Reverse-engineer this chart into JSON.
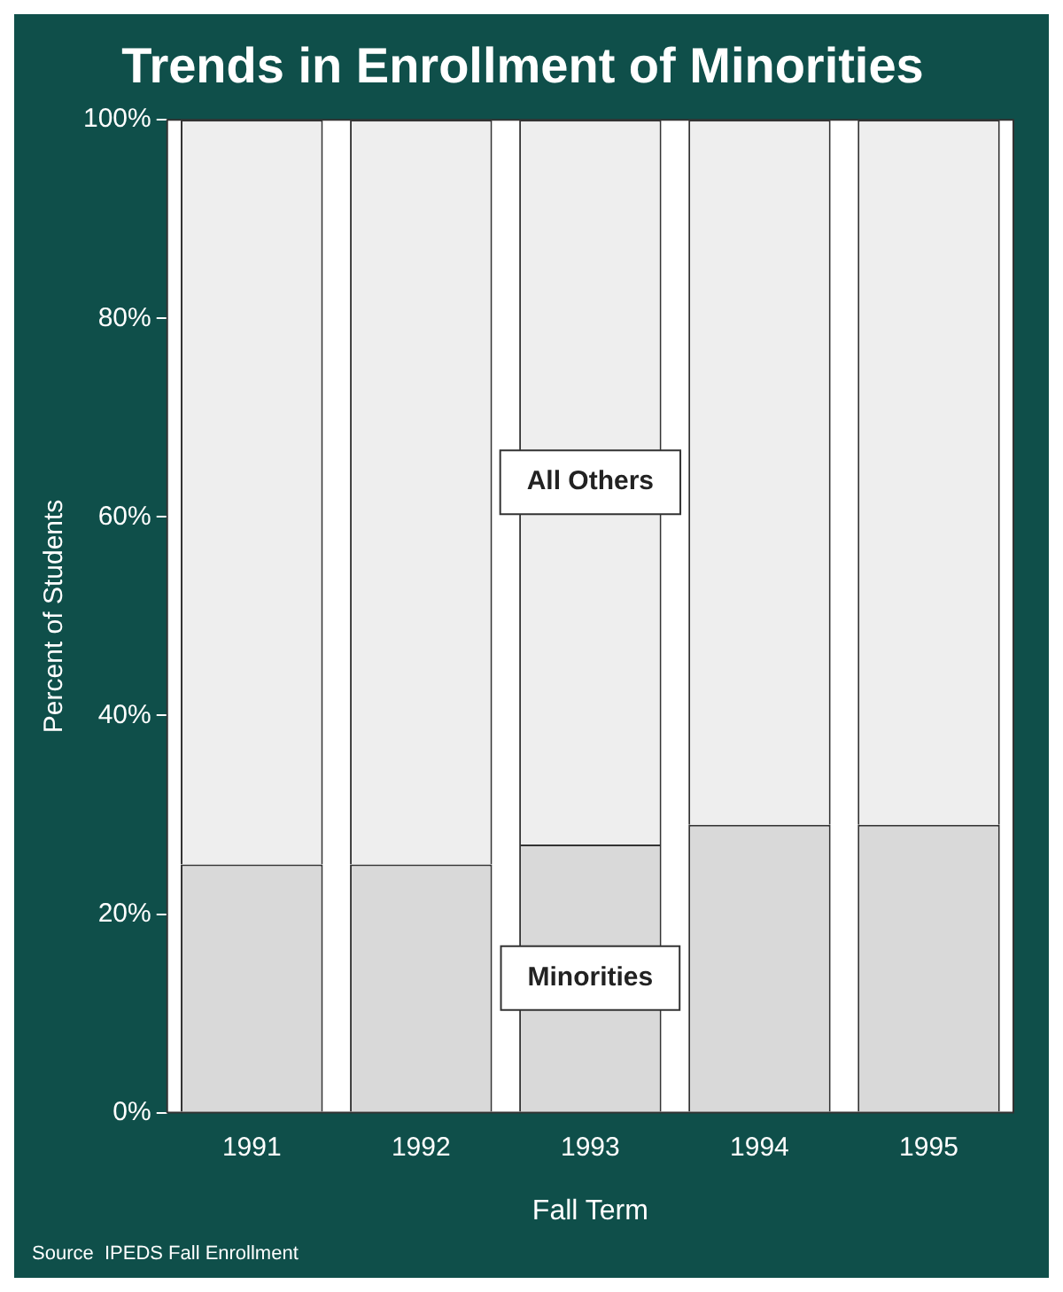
{
  "chart_data": {
    "type": "bar",
    "title": "Trends in Enrollment of Minorities",
    "xlabel": "Fall Term",
    "ylabel": "Percent of Students",
    "categories": [
      "1991",
      "1992",
      "1993",
      "1994",
      "1995"
    ],
    "series": [
      {
        "name": "Minorities",
        "color": "#d9d9d9",
        "values": [
          25,
          25,
          27,
          29,
          29
        ]
      },
      {
        "name": "All Others",
        "color": "#eeeeee",
        "values": [
          75,
          75,
          73,
          71,
          71
        ]
      }
    ],
    "stacked": true,
    "ylim": [
      0,
      100
    ],
    "yticks": [
      {
        "value": 0,
        "label": "0%"
      },
      {
        "value": 20,
        "label": "20%"
      },
      {
        "value": 40,
        "label": "40%"
      },
      {
        "value": 60,
        "label": "60%"
      },
      {
        "value": 80,
        "label": "80%"
      },
      {
        "value": 100,
        "label": "100%"
      }
    ],
    "grid": false,
    "legend": false,
    "annotations": [
      "Source  IPEDS Fall Enrollment"
    ]
  }
}
